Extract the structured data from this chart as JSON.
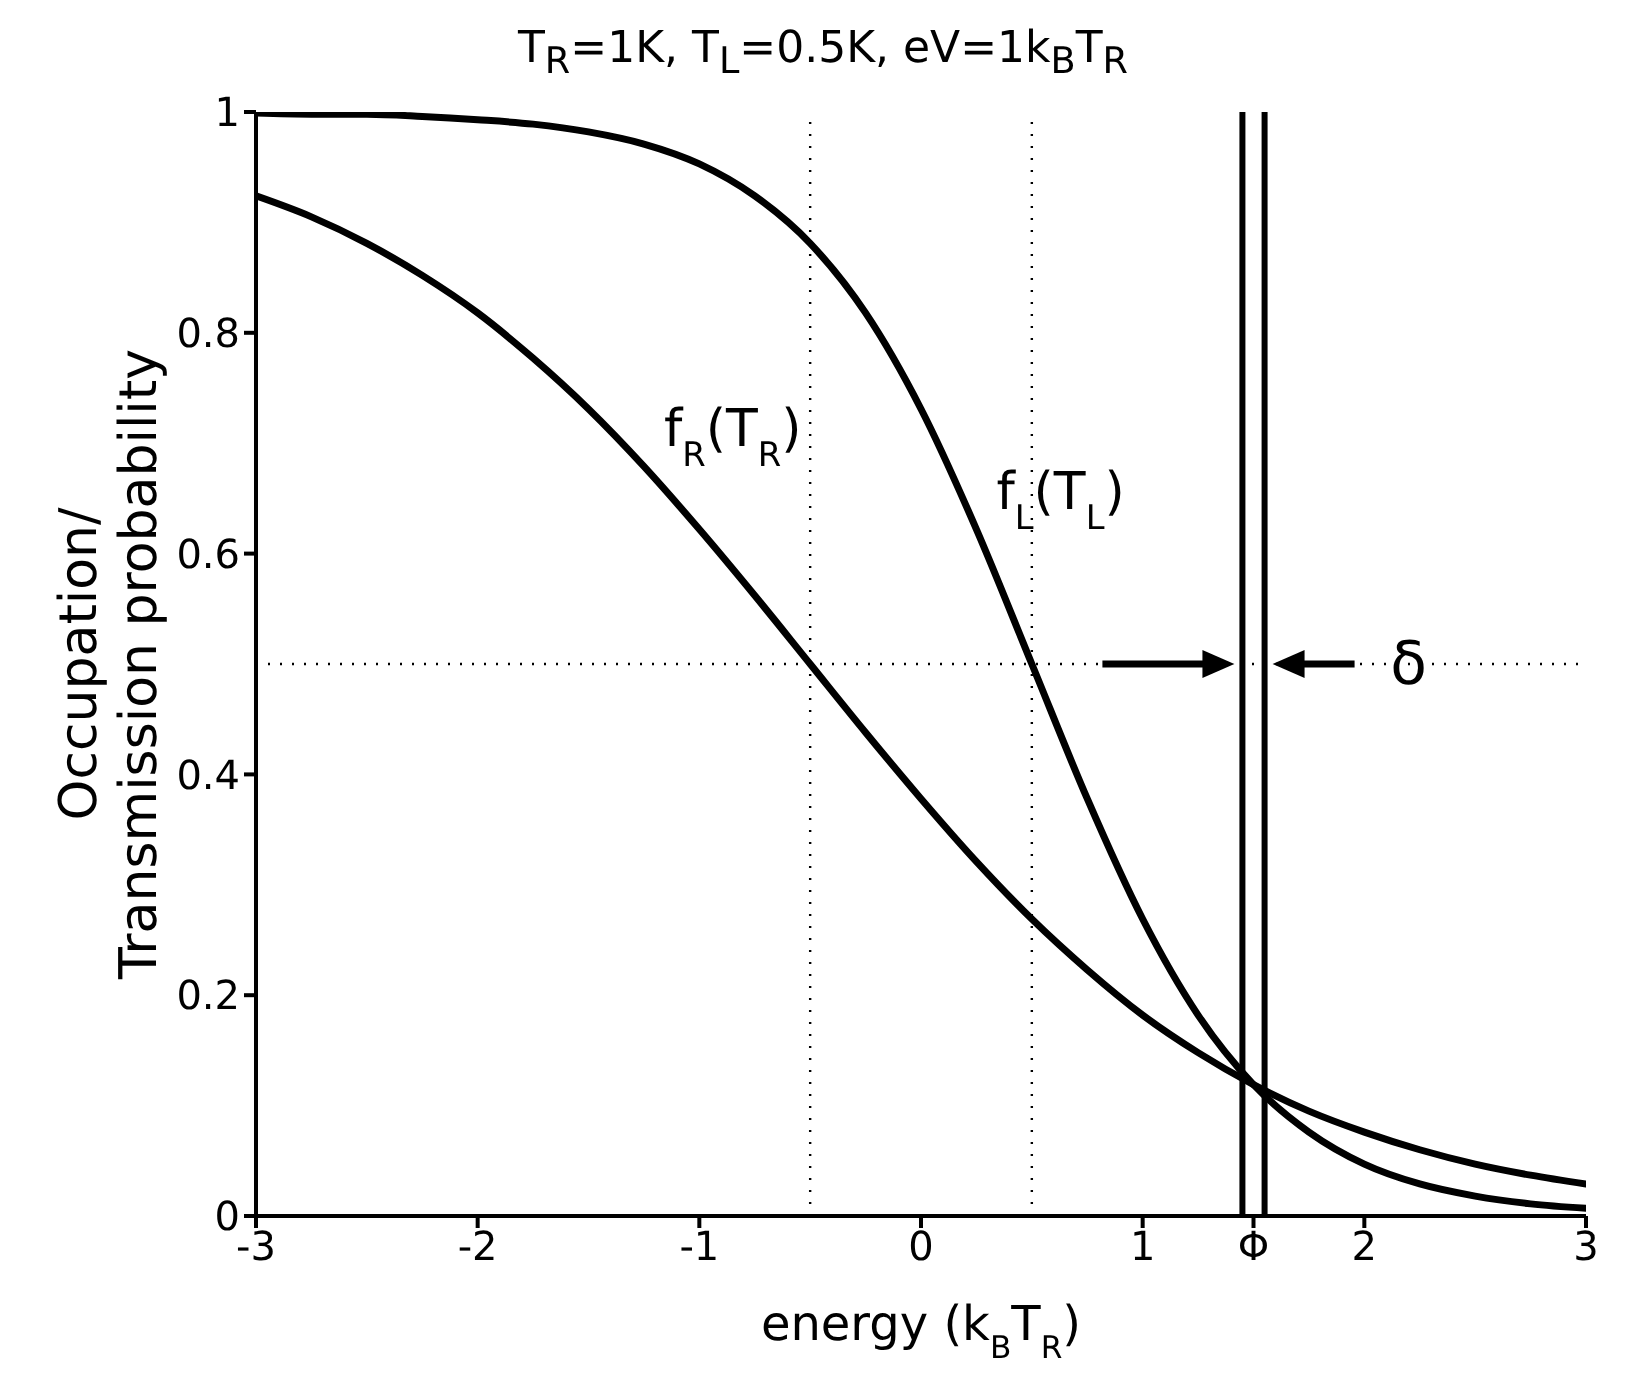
{
  "chart_data": {
    "type": "line",
    "title": "T$_{R}$=1K, T$_{L}$=0.5K, eV=1k$_{B}$T$_{R}$",
    "xlabel": "energy (k$_{B}$T$_{R}$)",
    "ylabel": "Occupation/\nTransmission probability",
    "x": [
      -3,
      -2.75,
      -2.5,
      -2.25,
      -2,
      -1.75,
      -1.5,
      -1.25,
      -1,
      -0.75,
      -0.5,
      -0.25,
      0,
      0.25,
      0.5,
      0.75,
      1,
      1.25,
      1.5,
      1.75,
      2,
      2.25,
      2.5,
      2.75,
      3
    ],
    "series": [
      {
        "name": "f$_{R}$(T$_{R}$)",
        "color": "#000000",
        "values": [
          0.924,
          0.905,
          0.881,
          0.852,
          0.818,
          0.777,
          0.731,
          0.679,
          0.622,
          0.562,
          0.5,
          0.438,
          0.378,
          0.321,
          0.269,
          0.223,
          0.182,
          0.148,
          0.119,
          0.095,
          0.076,
          0.06,
          0.047,
          0.037,
          0.029
        ]
      },
      {
        "name": "f$_{L}$(T$_{L}$)",
        "color": "#000000",
        "values": [
          0.999,
          0.998,
          0.998,
          0.996,
          0.993,
          0.989,
          0.982,
          0.971,
          0.953,
          0.924,
          0.881,
          0.818,
          0.731,
          0.622,
          0.5,
          0.378,
          0.269,
          0.182,
          0.119,
          0.076,
          0.047,
          0.029,
          0.018,
          0.011,
          0.007
        ]
      }
    ],
    "xlim": [
      -3,
      3
    ],
    "xticks": [
      -3,
      -2,
      -1,
      0,
      1,
      {
        "value": 1.5,
        "label": "Φ"
      },
      2,
      3
    ],
    "ylim": [
      0,
      1
    ],
    "yticks": [
      0,
      0.2,
      0.4,
      0.6,
      0.8,
      1
    ],
    "ref_lines": [
      {
        "axis": "x",
        "value": -0.5,
        "color": "#000000",
        "line_style": "dotted"
      },
      {
        "axis": "x",
        "value": 0.5,
        "color": "#000000",
        "line_style": "dotted"
      },
      {
        "axis": "y",
        "value": 0.5,
        "color": "#000000",
        "line_style": "dotted"
      },
      {
        "axis": "x",
        "value": 1.45,
        "color": "#000000",
        "line_style": "solid"
      },
      {
        "axis": "x",
        "value": 1.55,
        "color": "#000000",
        "line_style": "solid"
      }
    ],
    "annotations": [
      {
        "text": "δ",
        "x": 2.2,
        "y": 0.5
      }
    ],
    "grid": false,
    "legend": false,
    "marker": "none",
    "line_style": "solid"
  }
}
